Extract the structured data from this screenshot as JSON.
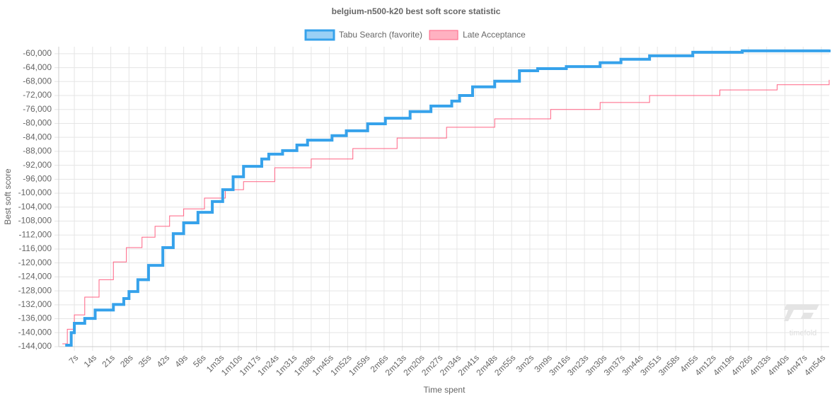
{
  "chart_data": {
    "type": "line",
    "title": "belgium-n500-k20 best soft score statistic",
    "x_label": "Time spent",
    "y_label": "Best soft score",
    "watermark": "timefold",
    "grid": true,
    "step": true,
    "legend": "top",
    "xlim": [
      1,
      297
    ],
    "ylim": [
      -144000,
      -58000
    ],
    "xticks": [
      {
        "value": 7,
        "label": "7s"
      },
      {
        "value": 14,
        "label": "14s"
      },
      {
        "value": 21,
        "label": "21s"
      },
      {
        "value": 28,
        "label": "28s"
      },
      {
        "value": 35,
        "label": "35s"
      },
      {
        "value": 42,
        "label": "42s"
      },
      {
        "value": 49,
        "label": "49s"
      },
      {
        "value": 56,
        "label": "56s"
      },
      {
        "value": 63,
        "label": "1m3s"
      },
      {
        "value": 70,
        "label": "1m10s"
      },
      {
        "value": 77,
        "label": "1m17s"
      },
      {
        "value": 84,
        "label": "1m24s"
      },
      {
        "value": 91,
        "label": "1m31s"
      },
      {
        "value": 98,
        "label": "1m38s"
      },
      {
        "value": 105,
        "label": "1m45s"
      },
      {
        "value": 112,
        "label": "1m52s"
      },
      {
        "value": 119,
        "label": "1m59s"
      },
      {
        "value": 126,
        "label": "2m6s"
      },
      {
        "value": 133,
        "label": "2m13s"
      },
      {
        "value": 140,
        "label": "2m20s"
      },
      {
        "value": 147,
        "label": "2m27s"
      },
      {
        "value": 154,
        "label": "2m34s"
      },
      {
        "value": 161,
        "label": "2m41s"
      },
      {
        "value": 168,
        "label": "2m48s"
      },
      {
        "value": 175,
        "label": "2m55s"
      },
      {
        "value": 182,
        "label": "3m2s"
      },
      {
        "value": 189,
        "label": "3m9s"
      },
      {
        "value": 196,
        "label": "3m16s"
      },
      {
        "value": 203,
        "label": "3m23s"
      },
      {
        "value": 210,
        "label": "3m30s"
      },
      {
        "value": 217,
        "label": "3m37s"
      },
      {
        "value": 224,
        "label": "3m44s"
      },
      {
        "value": 231,
        "label": "3m51s"
      },
      {
        "value": 238,
        "label": "3m58s"
      },
      {
        "value": 245,
        "label": "4m5s"
      },
      {
        "value": 252,
        "label": "4m12s"
      },
      {
        "value": 259,
        "label": "4m19s"
      },
      {
        "value": 266,
        "label": "4m26s"
      },
      {
        "value": 273,
        "label": "4m33s"
      },
      {
        "value": 280,
        "label": "4m40s"
      },
      {
        "value": 287,
        "label": "4m47s"
      },
      {
        "value": 294,
        "label": "4m54s"
      }
    ],
    "yticks": [
      {
        "value": -144000,
        "label": "-144,000"
      },
      {
        "value": -140000,
        "label": "-140,000"
      },
      {
        "value": -136000,
        "label": "-136,000"
      },
      {
        "value": -132000,
        "label": "-132,000"
      },
      {
        "value": -128000,
        "label": "-128,000"
      },
      {
        "value": -124000,
        "label": "-124,000"
      },
      {
        "value": -120000,
        "label": "-120,000"
      },
      {
        "value": -116000,
        "label": "-116,000"
      },
      {
        "value": -112000,
        "label": "-112,000"
      },
      {
        "value": -108000,
        "label": "-108,000"
      },
      {
        "value": -104000,
        "label": "-104,000"
      },
      {
        "value": -100000,
        "label": "-100,000"
      },
      {
        "value": -96000,
        "label": "-96,000"
      },
      {
        "value": -92000,
        "label": "-92,000"
      },
      {
        "value": -88000,
        "label": "-88,000"
      },
      {
        "value": -84000,
        "label": "-84,000"
      },
      {
        "value": -80000,
        "label": "-80,000"
      },
      {
        "value": -76000,
        "label": "-76,000"
      },
      {
        "value": -72000,
        "label": "-72,000"
      },
      {
        "value": -68000,
        "label": "-68,000"
      },
      {
        "value": -64000,
        "label": "-64,000"
      },
      {
        "value": -60000,
        "label": "-60,000"
      }
    ],
    "series": [
      {
        "name": "Tabu Search (favorite)",
        "color": "#36a2eb",
        "line_width": 4,
        "x": [
          3.5,
          5.8,
          7,
          11,
          15,
          22,
          26,
          28,
          31.4,
          35.5,
          41,
          45,
          49,
          54.5,
          60,
          64,
          68,
          72,
          79,
          81.7,
          87,
          92.5,
          96.6,
          106,
          111.5,
          119.7,
          126.5,
          136,
          144,
          152,
          155,
          160,
          168.5,
          178,
          185,
          196,
          209,
          217,
          228,
          244.6,
          263.6,
          297
        ],
        "values": [
          -143600,
          -140000,
          -137300,
          -135900,
          -133500,
          -131900,
          -130200,
          -128200,
          -124800,
          -120700,
          -115600,
          -111600,
          -108500,
          -105500,
          -102400,
          -99000,
          -95300,
          -92300,
          -90200,
          -88800,
          -87800,
          -86200,
          -84800,
          -83500,
          -82100,
          -80100,
          -78500,
          -76600,
          -75000,
          -73600,
          -72000,
          -69500,
          -67900,
          -64900,
          -64300,
          -63700,
          -62600,
          -61600,
          -60600,
          -59600,
          -59200,
          -58800
        ]
      },
      {
        "name": "Late Acceptance",
        "color": "#ff6384",
        "line_width": 1,
        "x": [
          2.4,
          4.3,
          7,
          11,
          16.5,
          22,
          27,
          33,
          38,
          43.6,
          49,
          57,
          65,
          72,
          84,
          98,
          114,
          131,
          150,
          168.5,
          190,
          209,
          228,
          255,
          277,
          297
        ],
        "values": [
          -143200,
          -139000,
          -134900,
          -129800,
          -124800,
          -119700,
          -115600,
          -112600,
          -109500,
          -106500,
          -104500,
          -101400,
          -99000,
          -96700,
          -92700,
          -90200,
          -87200,
          -84200,
          -81100,
          -78700,
          -76000,
          -74000,
          -72000,
          -70400,
          -68900,
          -67500
        ]
      }
    ]
  }
}
